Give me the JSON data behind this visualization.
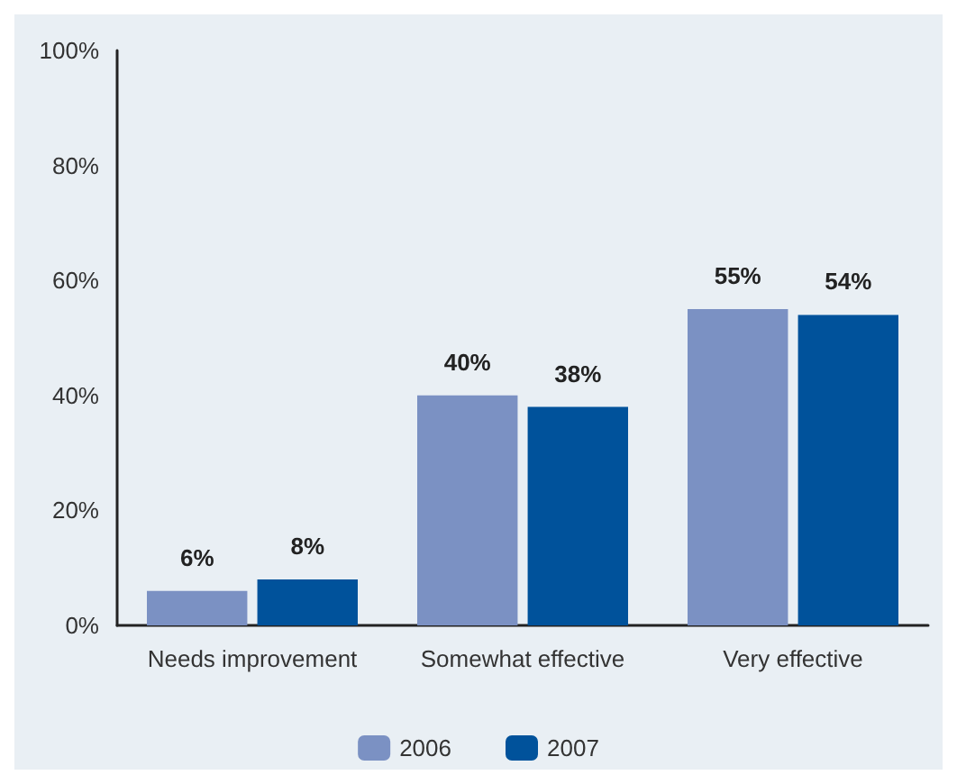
{
  "chart_data": {
    "type": "bar",
    "categories": [
      "Needs improvement",
      "Somewhat effective",
      "Very effective"
    ],
    "series": [
      {
        "name": "2006",
        "color": "#7b91c3",
        "values": [
          6,
          40,
          55
        ],
        "value_labels": [
          "6%",
          "40%",
          "55%"
        ]
      },
      {
        "name": "2007",
        "color": "#00529b",
        "values": [
          8,
          38,
          54
        ],
        "value_labels": [
          "8%",
          "38%",
          "54%"
        ]
      }
    ],
    "ylim": [
      0,
      100
    ],
    "yticks": [
      {
        "value": 0,
        "label": "0%"
      },
      {
        "value": 20,
        "label": "20%"
      },
      {
        "value": 40,
        "label": "40%"
      },
      {
        "value": 60,
        "label": "60%"
      },
      {
        "value": 80,
        "label": "80%"
      },
      {
        "value": 100,
        "label": "100%"
      }
    ],
    "grid": false,
    "legend": "bottom"
  }
}
